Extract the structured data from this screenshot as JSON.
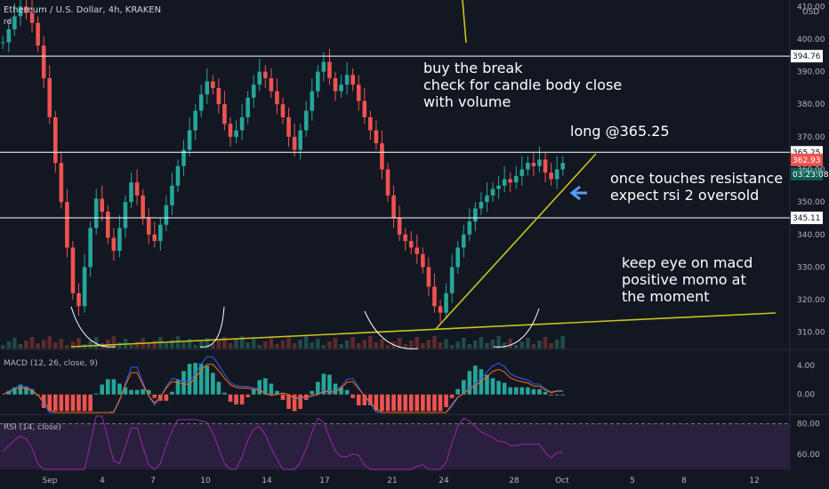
{
  "header": {
    "title": "Ethereum / U.S. Dollar, 4h, KRAKEN",
    "sub": "rd"
  },
  "price_axis": {
    "currency": "USD"
  },
  "annotations": {
    "buy": "buy the break\ncheck for candle body close\nwith volume",
    "long": "long @365.25",
    "resist": "once touches resistance\nexpect rsi 2 oversold",
    "macd": "keep eye on macd\npositive momo at\nthe moment"
  },
  "panes": {
    "macd_label": "MACD (12, 26, close, 9)",
    "rsi_label": "RSI (14, close)"
  },
  "colors": {
    "up": "#26a69a",
    "down": "#ef5350",
    "trend": "#c8c41d",
    "macd": "#2962ff",
    "signal": "#ff6d00",
    "rsi": "#9c27b0",
    "rsi_band": "#2a1f3d",
    "tag_bg": "#363a45"
  },
  "chart_data": {
    "type": "candlestick",
    "title": "Ethereum / U.S. Dollar, 4h, KRAKEN",
    "price_ylim": [
      305,
      412
    ],
    "price_ticks": [
      310,
      320,
      330,
      340,
      350,
      360,
      370,
      380,
      390,
      400,
      410
    ],
    "x_ticks": [
      "Sep",
      "4",
      "7",
      "10",
      "14",
      "17",
      "21",
      "24",
      "28",
      "Oct",
      "5",
      "8",
      "12"
    ],
    "horizontal_levels": [
      {
        "price": 394.76,
        "label": "394.76"
      },
      {
        "price": 365.25,
        "label": "365.25"
      },
      {
        "price": 345.11,
        "label": "345.11"
      }
    ],
    "last_price": {
      "price": 362.93,
      "label": "362.93",
      "countdown": "03:23:08"
    },
    "closes": [
      399,
      403,
      407,
      410,
      408,
      405,
      398,
      388,
      376,
      362,
      350,
      336,
      322,
      318,
      330,
      342,
      351,
      347,
      339,
      335,
      342,
      350,
      356,
      352,
      345,
      340,
      338,
      343,
      349,
      355,
      361,
      366,
      372,
      378,
      383,
      387,
      385,
      380,
      374,
      370,
      372,
      376,
      382,
      386,
      390,
      388,
      384,
      380,
      376,
      370,
      366,
      372,
      378,
      384,
      390,
      393,
      388,
      384,
      386,
      389,
      386,
      381,
      376,
      372,
      368,
      360,
      352,
      345,
      340,
      338,
      336,
      334,
      330,
      324,
      318,
      316,
      322,
      330,
      336,
      340,
      344,
      348,
      350,
      352,
      354,
      355,
      357,
      356,
      358,
      360,
      362,
      361,
      363,
      359,
      357,
      360,
      362
    ],
    "macd": {
      "macd_ylim": [
        -2.5,
        6
      ],
      "macd_ticks": [
        0.0,
        4.0
      ]
    },
    "rsi": {
      "rsi_ylim": [
        50,
        85
      ],
      "rsi_ticks": [
        60.0,
        80.0
      ]
    }
  }
}
